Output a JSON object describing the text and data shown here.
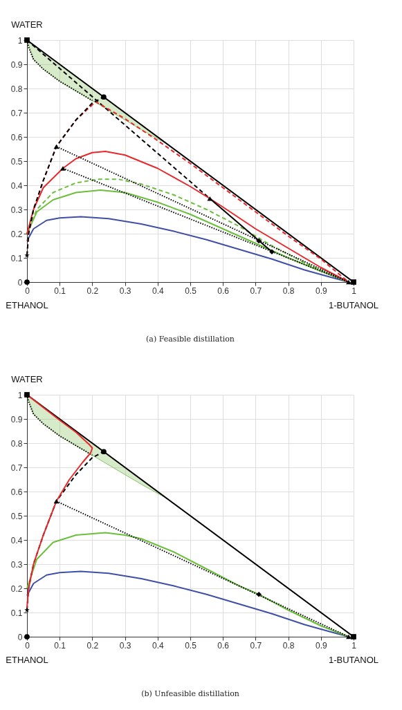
{
  "chart_data": [
    {
      "type": "line",
      "title": "(a) Feasible distillation",
      "xlim": [
        0,
        1
      ],
      "ylim": [
        0,
        1
      ],
      "xticks": [
        0,
        0.1,
        0.2,
        0.3,
        0.4,
        0.5,
        0.6,
        0.7,
        0.8,
        0.9,
        1
      ],
      "yticks": [
        0,
        0.1,
        0.2,
        0.3,
        0.4,
        0.5,
        0.6,
        0.7,
        0.8,
        0.9,
        1
      ],
      "grid": true,
      "annotations": [
        "WATER",
        "ETHANOL",
        "1-BUTANOL"
      ],
      "series": [
        {
          "type": "line",
          "color": "#8cc266",
          "x": [
            0,
            0.02,
            0.05,
            0.1,
            0.15,
            0.2,
            0.25,
            0.3,
            0.35,
            0.43
          ],
          "values": [
            1,
            0.92,
            0.88,
            0.83,
            0.79,
            0.75,
            0.71,
            0.67,
            0.63,
            0.57
          ],
          "lower": [
            1,
            0.92,
            0.88,
            0.83,
            0.79,
            0.75,
            0.71,
            0.67,
            0.63,
            0.57
          ],
          "upper": [
            1,
            0.98,
            0.95,
            0.9,
            0.85,
            0.8,
            0.75,
            0.7,
            0.65,
            0.57
          ]
        },
        {
          "type": "line",
          "color": "#000000",
          "line_style": "dotted",
          "x": [
            0,
            0.005,
            0.02,
            0.05,
            0.1,
            0.15,
            0.2
          ],
          "values": [
            1,
            0.97,
            0.92,
            0.88,
            0.83,
            0.79,
            0.75
          ]
        },
        {
          "type": "line",
          "color": "#000000",
          "line_style": "solid",
          "x": [
            0,
            1
          ],
          "values": [
            1,
            0
          ]
        },
        {
          "type": "line",
          "color": "#000000",
          "line_style": "dashed",
          "x": [
            0,
            0.56
          ],
          "values": [
            1,
            0.345
          ]
        },
        {
          "type": "line",
          "color": "#3f4fa8",
          "line_style": "solid",
          "x": [
            0,
            0.02,
            0.06,
            0.1,
            0.165,
            0.25,
            0.35,
            0.45,
            0.55,
            0.65,
            0.75,
            0.85,
            0.93,
            0.985
          ],
          "values": [
            0.17,
            0.22,
            0.255,
            0.265,
            0.27,
            0.262,
            0.24,
            0.21,
            0.175,
            0.135,
            0.095,
            0.05,
            0.02,
            0
          ]
        },
        {
          "type": "line",
          "color": "#6cbf3c",
          "line_style": "solid",
          "x": [
            0,
            0.03,
            0.08,
            0.15,
            0.225,
            0.3,
            0.4,
            0.5,
            0.6,
            0.7,
            0.8,
            0.9,
            0.985
          ],
          "values": [
            0.2,
            0.29,
            0.34,
            0.37,
            0.38,
            0.37,
            0.33,
            0.28,
            0.22,
            0.16,
            0.1,
            0.045,
            0
          ]
        },
        {
          "type": "line",
          "color": "#6cbf3c",
          "line_style": "dashed",
          "x": [
            0,
            0.03,
            0.08,
            0.15,
            0.22,
            0.28,
            0.35,
            0.45,
            0.55,
            0.65,
            0.75,
            0.85,
            0.93,
            0.985
          ],
          "values": [
            0.2,
            0.3,
            0.37,
            0.41,
            0.425,
            0.425,
            0.405,
            0.36,
            0.3,
            0.23,
            0.15,
            0.08,
            0.03,
            0
          ]
        },
        {
          "type": "line",
          "color": "#e8282b",
          "line_style": "solid",
          "x": [
            0,
            0.02,
            0.05,
            0.11,
            0.15,
            0.2,
            0.24,
            0.3,
            0.4,
            0.5,
            0.56,
            0.6,
            0.7,
            0.8,
            0.9,
            0.985
          ],
          "values": [
            0.2,
            0.3,
            0.39,
            0.47,
            0.51,
            0.535,
            0.54,
            0.525,
            0.47,
            0.395,
            0.345,
            0.31,
            0.22,
            0.14,
            0.06,
            0
          ]
        },
        {
          "type": "line",
          "color": "#e8282b",
          "line_style": "dashed",
          "x": [
            0,
            0.005,
            0.02,
            0.05,
            0.09,
            0.15,
            0.21,
            0.3,
            0.4,
            0.5,
            0.6,
            0.7,
            0.8,
            0.9,
            0.985
          ],
          "values": [
            0.11,
            0.2,
            0.3,
            0.42,
            0.56,
            0.67,
            0.745,
            0.675,
            0.585,
            0.49,
            0.39,
            0.29,
            0.19,
            0.095,
            0
          ]
        },
        {
          "type": "line",
          "color": "#000000",
          "line_style": "dashed",
          "x": [
            0,
            0.005,
            0.02,
            0.05,
            0.09,
            0.15,
            0.2,
            0.235
          ],
          "values": [
            0.11,
            0.2,
            0.3,
            0.42,
            0.56,
            0.67,
            0.74,
            0.765
          ]
        },
        {
          "type": "line",
          "color": "#000000",
          "line_style": "dotted",
          "x": [
            0.09,
            0.985
          ],
          "values": [
            0.56,
            0
          ]
        },
        {
          "type": "line",
          "color": "#000000",
          "line_style": "dotted",
          "x": [
            0.11,
            0.985
          ],
          "values": [
            0.47,
            0
          ]
        },
        {
          "type": "line",
          "color": "#000000",
          "line_style": "solid",
          "x": [
            0.75,
            0.56
          ],
          "values": [
            0.125,
            0.345
          ]
        },
        {
          "type": "scatter",
          "marker": "square",
          "color": "#000000",
          "x": [
            0,
            1
          ],
          "values": [
            1,
            0
          ]
        },
        {
          "type": "scatter",
          "marker": "circle",
          "color": "#000000",
          "x": [
            0.235,
            0
          ],
          "values": [
            0.765,
            0
          ]
        },
        {
          "type": "scatter",
          "marker": "star",
          "color": "#000000",
          "x": [
            0
          ],
          "values": [
            0.11
          ]
        },
        {
          "type": "scatter",
          "marker": "triangle",
          "color": "#000000",
          "x": [
            0.09,
            0.11,
            0.56,
            0.985
          ],
          "values": [
            0.56,
            0.47,
            0.345,
            0
          ]
        },
        {
          "type": "scatter",
          "marker": "diamond",
          "color": "#000000",
          "x": [
            0.71,
            0.75
          ],
          "values": [
            0.17,
            0.125
          ]
        }
      ]
    },
    {
      "type": "line",
      "title": "(b) Unfeasible distillation",
      "xlim": [
        0,
        1
      ],
      "ylim": [
        0,
        1
      ],
      "xticks": [
        0,
        0.1,
        0.2,
        0.3,
        0.4,
        0.5,
        0.6,
        0.7,
        0.8,
        0.9,
        1
      ],
      "yticks": [
        0,
        0.1,
        0.2,
        0.3,
        0.4,
        0.5,
        0.6,
        0.7,
        0.8,
        0.9,
        1
      ],
      "grid": true,
      "annotations": [
        "WATER",
        "ETHANOL",
        "1-BUTANOL"
      ],
      "series": [
        {
          "type": "line",
          "color": "#8cc266",
          "x": [
            0,
            0.02,
            0.05,
            0.1,
            0.15,
            0.2,
            0.25,
            0.3,
            0.35,
            0.43
          ],
          "values": [
            1,
            0.92,
            0.88,
            0.83,
            0.79,
            0.75,
            0.71,
            0.67,
            0.63,
            0.57
          ],
          "lower": [
            1,
            0.92,
            0.88,
            0.83,
            0.79,
            0.75,
            0.71,
            0.67,
            0.63,
            0.57
          ],
          "upper": [
            1,
            0.98,
            0.95,
            0.9,
            0.85,
            0.8,
            0.75,
            0.7,
            0.65,
            0.57
          ]
        },
        {
          "type": "line",
          "color": "#000000",
          "line_style": "dotted",
          "x": [
            0,
            0.005,
            0.02,
            0.05,
            0.1,
            0.15,
            0.2
          ],
          "values": [
            1,
            0.97,
            0.92,
            0.88,
            0.83,
            0.79,
            0.75
          ]
        },
        {
          "type": "line",
          "color": "#000000",
          "line_style": "solid",
          "x": [
            0,
            1
          ],
          "values": [
            1,
            0
          ]
        },
        {
          "type": "line",
          "color": "#3f4fa8",
          "line_style": "solid",
          "x": [
            0,
            0.02,
            0.06,
            0.1,
            0.165,
            0.25,
            0.35,
            0.45,
            0.55,
            0.65,
            0.75,
            0.85,
            0.93,
            0.985
          ],
          "values": [
            0.17,
            0.22,
            0.255,
            0.265,
            0.27,
            0.262,
            0.24,
            0.21,
            0.175,
            0.135,
            0.095,
            0.05,
            0.02,
            0
          ]
        },
        {
          "type": "line",
          "color": "#6cbf3c",
          "line_style": "solid",
          "x": [
            0,
            0.03,
            0.08,
            0.15,
            0.24,
            0.3,
            0.35,
            0.45,
            0.55,
            0.65,
            0.71,
            0.8,
            0.9,
            0.985
          ],
          "values": [
            0.2,
            0.32,
            0.39,
            0.42,
            0.43,
            0.42,
            0.405,
            0.35,
            0.28,
            0.21,
            0.175,
            0.11,
            0.045,
            0
          ]
        },
        {
          "type": "line",
          "color": "#000000",
          "line_style": "dashed",
          "x": [
            0,
            0.005,
            0.02,
            0.05,
            0.09,
            0.15,
            0.2,
            0.235
          ],
          "values": [
            0.11,
            0.2,
            0.3,
            0.42,
            0.56,
            0.67,
            0.74,
            0.765
          ]
        },
        {
          "type": "line",
          "color": "#e8282b",
          "line_style": "solid",
          "x": [
            0,
            0.005,
            0.02,
            0.05,
            0.09,
            0.13,
            0.17,
            0.195,
            0.2,
            0.19,
            0.15,
            0.1,
            0.05,
            0
          ],
          "values": [
            0.12,
            0.2,
            0.3,
            0.42,
            0.56,
            0.65,
            0.72,
            0.76,
            0.78,
            0.795,
            0.845,
            0.895,
            0.947,
            1
          ]
        },
        {
          "type": "line",
          "color": "#000000",
          "line_style": "dotted",
          "x": [
            0.09,
            0.985
          ],
          "values": [
            0.56,
            0
          ]
        },
        {
          "type": "scatter",
          "marker": "square",
          "color": "#000000",
          "x": [
            0,
            1
          ],
          "values": [
            1,
            0
          ]
        },
        {
          "type": "scatter",
          "marker": "circle",
          "color": "#000000",
          "x": [
            0.235,
            0
          ],
          "values": [
            0.765,
            0
          ]
        },
        {
          "type": "scatter",
          "marker": "star",
          "color": "#000000",
          "x": [
            0
          ],
          "values": [
            0.11
          ]
        },
        {
          "type": "scatter",
          "marker": "triangle",
          "color": "#000000",
          "x": [
            0.09,
            0.985
          ],
          "values": [
            0.56,
            0
          ]
        },
        {
          "type": "scatter",
          "marker": "diamond",
          "color": "#000000",
          "x": [
            0.71
          ],
          "values": [
            0.175
          ]
        }
      ]
    }
  ]
}
